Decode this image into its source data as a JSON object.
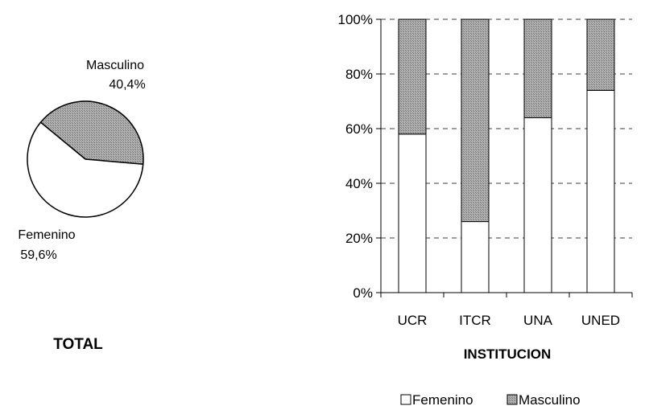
{
  "colors": {
    "femenino": "#ffffff",
    "masculino": "#9a9a9a",
    "stroke": "#000000",
    "grid": "#000000"
  },
  "chart_data": [
    {
      "type": "pie",
      "title": "TOTAL",
      "slices": [
        {
          "name": "Masculino",
          "value": 40.4,
          "label": "Masculino",
          "pct_label": "40,4%"
        },
        {
          "name": "Femenino",
          "value": 59.6,
          "label": "Femenino",
          "pct_label": "59,6%"
        }
      ]
    },
    {
      "type": "bar",
      "stacked": true,
      "categories": [
        "UCR",
        "ITCR",
        "UNA",
        "UNED"
      ],
      "series": [
        {
          "name": "Femenino",
          "values": [
            58,
            26,
            64,
            74
          ]
        },
        {
          "name": "Masculino",
          "values": [
            42,
            74,
            36,
            26
          ]
        }
      ],
      "xlabel": "INSTITUCION",
      "ylabel": "",
      "ylim": [
        0,
        100
      ],
      "yticks": [
        "0%",
        "20%",
        "40%",
        "60%",
        "80%",
        "100%"
      ],
      "grid": true,
      "legend": "bottom"
    }
  ]
}
